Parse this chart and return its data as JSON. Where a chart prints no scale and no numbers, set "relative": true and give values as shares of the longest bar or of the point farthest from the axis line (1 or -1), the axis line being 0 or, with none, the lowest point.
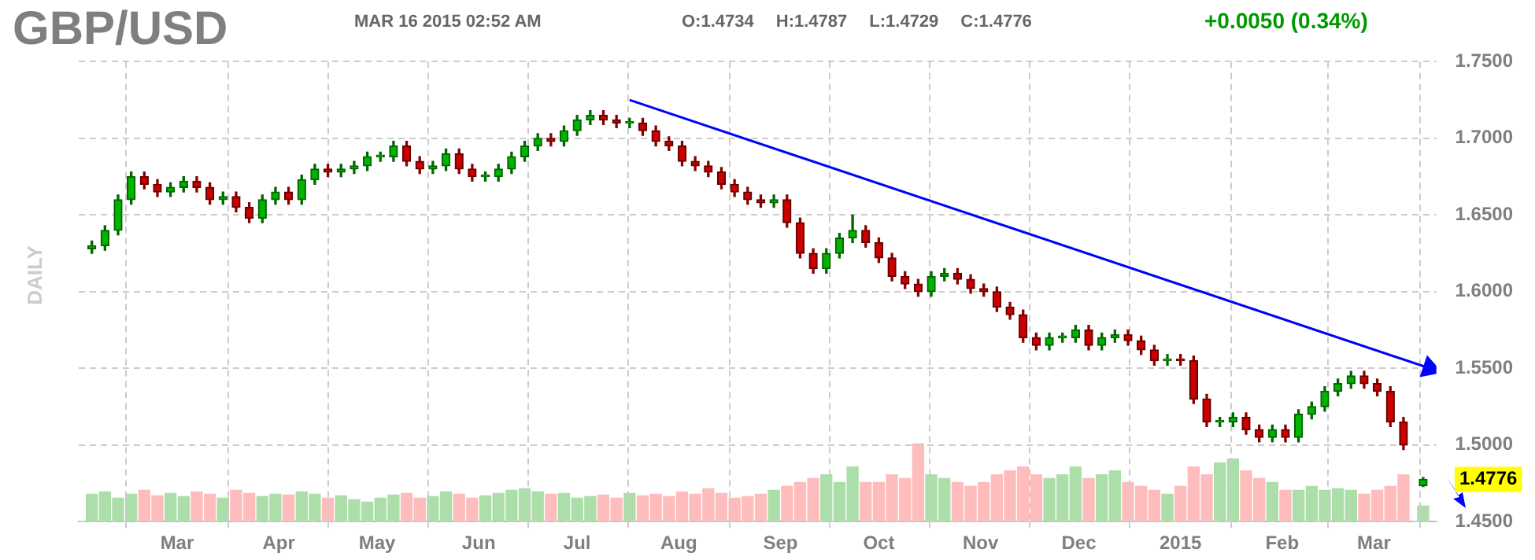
{
  "chart_data": [
    {
      "type": "candlestick",
      "title": "GBP/USD",
      "subtitle": "MAR 16 2015 02:52 AM",
      "ylabel": "DAILY",
      "annotations": [
        "O:1.4734",
        "H:1.4787",
        "L:1.4729",
        "C:1.4776",
        "+0.0050 (0.34%)",
        {
          "text": "1.4776",
          "x": "2015-03-16",
          "y": 1.4776
        }
      ],
      "x": [
        "2014-02-03",
        "2014-02-07",
        "2014-02-11",
        "2014-02-15",
        "2014-02-19",
        "2014-02-23",
        "2014-02-27",
        "2014-03-03",
        "2014-03-07",
        "2014-03-11",
        "2014-03-15",
        "2014-03-19",
        "2014-03-23",
        "2014-03-27",
        "2014-03-31",
        "2014-04-04",
        "2014-04-08",
        "2014-04-12",
        "2014-04-16",
        "2014-04-20",
        "2014-04-24",
        "2014-04-28",
        "2014-05-02",
        "2014-05-06",
        "2014-05-10",
        "2014-05-14",
        "2014-05-18",
        "2014-05-22",
        "2014-05-26",
        "2014-05-30",
        "2014-06-03",
        "2014-06-07",
        "2014-06-11",
        "2014-06-15",
        "2014-06-19",
        "2014-06-23",
        "2014-06-27",
        "2014-07-01",
        "2014-07-05",
        "2014-07-09",
        "2014-07-13",
        "2014-07-17",
        "2014-07-21",
        "2014-07-25",
        "2014-07-29",
        "2014-08-02",
        "2014-08-06",
        "2014-08-10",
        "2014-08-14",
        "2014-08-18",
        "2014-08-22",
        "2014-08-26",
        "2014-08-30",
        "2014-09-03",
        "2014-09-07",
        "2014-09-11",
        "2014-09-15",
        "2014-09-19",
        "2014-09-23",
        "2014-09-27",
        "2014-10-01",
        "2014-10-05",
        "2014-10-09",
        "2014-10-13",
        "2014-10-17",
        "2014-10-21",
        "2014-10-25",
        "2014-10-29",
        "2014-11-02",
        "2014-11-06",
        "2014-11-10",
        "2014-11-14",
        "2014-11-18",
        "2014-11-22",
        "2014-11-26",
        "2014-11-30",
        "2014-12-04",
        "2014-12-08",
        "2014-12-12",
        "2014-12-16",
        "2014-12-20",
        "2014-12-24",
        "2014-12-28",
        "2015-01-01",
        "2015-01-05",
        "2015-01-09",
        "2015-01-13",
        "2015-01-17",
        "2015-01-21",
        "2015-01-25",
        "2015-01-29",
        "2015-02-02",
        "2015-02-06",
        "2015-02-10",
        "2015-02-14",
        "2015-02-18",
        "2015-02-22",
        "2015-02-26",
        "2015-03-02",
        "2015-03-06",
        "2015-03-10",
        "2015-03-16"
      ],
      "ohlc": [
        [
          1.628,
          1.633,
          1.625,
          1.63
        ],
        [
          1.63,
          1.643,
          1.627,
          1.64
        ],
        [
          1.64,
          1.663,
          1.637,
          1.66
        ],
        [
          1.66,
          1.678,
          1.657,
          1.675
        ],
        [
          1.675,
          1.678,
          1.667,
          1.67
        ],
        [
          1.67,
          1.673,
          1.662,
          1.665
        ],
        [
          1.665,
          1.671,
          1.662,
          1.668
        ],
        [
          1.668,
          1.675,
          1.665,
          1.672
        ],
        [
          1.672,
          1.675,
          1.665,
          1.668
        ],
        [
          1.668,
          1.671,
          1.657,
          1.66
        ],
        [
          1.66,
          1.665,
          1.657,
          1.662
        ],
        [
          1.662,
          1.665,
          1.652,
          1.655
        ],
        [
          1.655,
          1.658,
          1.645,
          1.648
        ],
        [
          1.648,
          1.663,
          1.645,
          1.66
        ],
        [
          1.66,
          1.668,
          1.657,
          1.665
        ],
        [
          1.665,
          1.668,
          1.657,
          1.66
        ],
        [
          1.66,
          1.676,
          1.657,
          1.673
        ],
        [
          1.673,
          1.683,
          1.67,
          1.68
        ],
        [
          1.68,
          1.683,
          1.675,
          1.678
        ],
        [
          1.678,
          1.683,
          1.675,
          1.68
        ],
        [
          1.68,
          1.685,
          1.677,
          1.682
        ],
        [
          1.682,
          1.691,
          1.679,
          1.688
        ],
        [
          1.688,
          1.691,
          1.685,
          1.688
        ],
        [
          1.688,
          1.698,
          1.685,
          1.695
        ],
        [
          1.695,
          1.698,
          1.682,
          1.685
        ],
        [
          1.685,
          1.688,
          1.677,
          1.68
        ],
        [
          1.68,
          1.685,
          1.677,
          1.682
        ],
        [
          1.682,
          1.693,
          1.679,
          1.69
        ],
        [
          1.69,
          1.693,
          1.677,
          1.68
        ],
        [
          1.68,
          1.683,
          1.672,
          1.675
        ],
        [
          1.675,
          1.678,
          1.672,
          1.675
        ],
        [
          1.675,
          1.683,
          1.672,
          1.68
        ],
        [
          1.68,
          1.691,
          1.677,
          1.688
        ],
        [
          1.688,
          1.698,
          1.685,
          1.695
        ],
        [
          1.695,
          1.703,
          1.692,
          1.7
        ],
        [
          1.7,
          1.703,
          1.695,
          1.698
        ],
        [
          1.698,
          1.708,
          1.695,
          1.705
        ],
        [
          1.705,
          1.715,
          1.702,
          1.712
        ],
        [
          1.712,
          1.718,
          1.709,
          1.715
        ],
        [
          1.715,
          1.718,
          1.709,
          1.712
        ],
        [
          1.712,
          1.715,
          1.707,
          1.71
        ],
        [
          1.71,
          1.713,
          1.707,
          1.71
        ],
        [
          1.71,
          1.713,
          1.702,
          1.705
        ],
        [
          1.705,
          1.708,
          1.695,
          1.698
        ],
        [
          1.698,
          1.701,
          1.692,
          1.695
        ],
        [
          1.695,
          1.698,
          1.682,
          1.685
        ],
        [
          1.685,
          1.688,
          1.679,
          1.682
        ],
        [
          1.682,
          1.685,
          1.675,
          1.678
        ],
        [
          1.678,
          1.681,
          1.667,
          1.67
        ],
        [
          1.67,
          1.673,
          1.662,
          1.665
        ],
        [
          1.665,
          1.668,
          1.657,
          1.66
        ],
        [
          1.66,
          1.663,
          1.655,
          1.658
        ],
        [
          1.658,
          1.663,
          1.655,
          1.66
        ],
        [
          1.66,
          1.663,
          1.642,
          1.645
        ],
        [
          1.645,
          1.648,
          1.622,
          1.625
        ],
        [
          1.625,
          1.628,
          1.612,
          1.615
        ],
        [
          1.615,
          1.628,
          1.612,
          1.625
        ],
        [
          1.625,
          1.638,
          1.622,
          1.635
        ],
        [
          1.635,
          1.65,
          1.632,
          1.64
        ],
        [
          1.64,
          1.643,
          1.629,
          1.632
        ],
        [
          1.632,
          1.635,
          1.619,
          1.622
        ],
        [
          1.622,
          1.625,
          1.607,
          1.61
        ],
        [
          1.61,
          1.613,
          1.602,
          1.605
        ],
        [
          1.605,
          1.608,
          1.597,
          1.6
        ],
        [
          1.6,
          1.613,
          1.597,
          1.61
        ],
        [
          1.61,
          1.615,
          1.607,
          1.612
        ],
        [
          1.612,
          1.615,
          1.605,
          1.608
        ],
        [
          1.608,
          1.611,
          1.599,
          1.602
        ],
        [
          1.602,
          1.605,
          1.597,
          1.6
        ],
        [
          1.6,
          1.603,
          1.587,
          1.59
        ],
        [
          1.59,
          1.593,
          1.582,
          1.585
        ],
        [
          1.585,
          1.588,
          1.567,
          1.57
        ],
        [
          1.57,
          1.573,
          1.562,
          1.565
        ],
        [
          1.565,
          1.573,
          1.562,
          1.57
        ],
        [
          1.57,
          1.573,
          1.567,
          1.57
        ],
        [
          1.57,
          1.578,
          1.567,
          1.575
        ],
        [
          1.575,
          1.578,
          1.562,
          1.565
        ],
        [
          1.565,
          1.573,
          1.562,
          1.57
        ],
        [
          1.57,
          1.575,
          1.567,
          1.572
        ],
        [
          1.572,
          1.575,
          1.565,
          1.568
        ],
        [
          1.568,
          1.571,
          1.559,
          1.562
        ],
        [
          1.562,
          1.565,
          1.552,
          1.555
        ],
        [
          1.555,
          1.559,
          1.552,
          1.556
        ],
        [
          1.556,
          1.559,
          1.552,
          1.555
        ],
        [
          1.555,
          1.558,
          1.527,
          1.53
        ],
        [
          1.53,
          1.533,
          1.512,
          1.515
        ],
        [
          1.515,
          1.518,
          1.512,
          1.515
        ],
        [
          1.515,
          1.521,
          1.512,
          1.518
        ],
        [
          1.518,
          1.521,
          1.507,
          1.51
        ],
        [
          1.51,
          1.513,
          1.502,
          1.505
        ],
        [
          1.505,
          1.513,
          1.502,
          1.51
        ],
        [
          1.51,
          1.513,
          1.502,
          1.505
        ],
        [
          1.505,
          1.523,
          1.502,
          1.52
        ],
        [
          1.52,
          1.528,
          1.517,
          1.525
        ],
        [
          1.525,
          1.538,
          1.522,
          1.535
        ],
        [
          1.535,
          1.543,
          1.532,
          1.54
        ],
        [
          1.54,
          1.548,
          1.537,
          1.545
        ],
        [
          1.545,
          1.548,
          1.537,
          1.54
        ],
        [
          1.54,
          1.543,
          1.532,
          1.535
        ],
        [
          1.535,
          1.538,
          1.512,
          1.515
        ],
        [
          1.515,
          1.518,
          1.497,
          1.5
        ],
        [
          1.4734,
          1.4787,
          1.4729,
          1.4776
        ]
      ],
      "series": [
        {
          "type": "line",
          "color": "#0000ff",
          "x": [
            "2014-07-17",
            "2015-03-18"
          ],
          "values": [
            1.725,
            1.55
          ]
        }
      ],
      "xlim": [
        "2014-01-30",
        "2015-03-20"
      ],
      "xticks": [
        {
          "value": "2014-03-01",
          "label": "Mar"
        },
        {
          "value": "2014-04-01",
          "label": "Apr"
        },
        {
          "value": "2014-05-01",
          "label": "May"
        },
        {
          "value": "2014-06-01",
          "label": "Jun"
        },
        {
          "value": "2014-07-01",
          "label": "Jul"
        },
        {
          "value": "2014-08-01",
          "label": "Aug"
        },
        {
          "value": "2014-09-01",
          "label": "Sep"
        },
        {
          "value": "2014-10-01",
          "label": "Oct"
        },
        {
          "value": "2014-11-01",
          "label": "Nov"
        },
        {
          "value": "2014-12-01",
          "label": "Dec"
        },
        {
          "value": "2015-01-01",
          "label": "2015"
        },
        {
          "value": "2015-02-01",
          "label": "Feb"
        },
        {
          "value": "2015-03-01",
          "label": "Mar"
        }
      ],
      "ylim": [
        1.45,
        1.75
      ],
      "yticks": [
        {
          "value": 1.45,
          "label": "1.4500"
        },
        {
          "value": 1.5,
          "label": "1.5000"
        },
        {
          "value": 1.55,
          "label": "1.5500"
        },
        {
          "value": 1.6,
          "label": "1.6000"
        },
        {
          "value": 1.65,
          "label": "1.6500"
        },
        {
          "value": 1.7,
          "label": "1.7000"
        },
        {
          "value": 1.75,
          "label": "1.7500"
        }
      ],
      "grid": true
    },
    {
      "type": "bar",
      "relative": true,
      "xlim": [
        "2014-01-30",
        "2015-03-20"
      ],
      "x": [
        "2014-02-03",
        "2014-02-07",
        "2014-02-11",
        "2014-02-15",
        "2014-02-19",
        "2014-02-23",
        "2014-02-27",
        "2014-03-03",
        "2014-03-07",
        "2014-03-11",
        "2014-03-15",
        "2014-03-19",
        "2014-03-23",
        "2014-03-27",
        "2014-03-31",
        "2014-04-04",
        "2014-04-08",
        "2014-04-12",
        "2014-04-16",
        "2014-04-20",
        "2014-04-24",
        "2014-04-28",
        "2014-05-02",
        "2014-05-06",
        "2014-05-10",
        "2014-05-14",
        "2014-05-18",
        "2014-05-22",
        "2014-05-26",
        "2014-05-30",
        "2014-06-03",
        "2014-06-07",
        "2014-06-11",
        "2014-06-15",
        "2014-06-19",
        "2014-06-23",
        "2014-06-27",
        "2014-07-01",
        "2014-07-05",
        "2014-07-09",
        "2014-07-13",
        "2014-07-17",
        "2014-07-21",
        "2014-07-25",
        "2014-07-29",
        "2014-08-02",
        "2014-08-06",
        "2014-08-10",
        "2014-08-14",
        "2014-08-18",
        "2014-08-22",
        "2014-08-26",
        "2014-08-30",
        "2014-09-03",
        "2014-09-07",
        "2014-09-11",
        "2014-09-15",
        "2014-09-19",
        "2014-09-23",
        "2014-09-27",
        "2014-10-01",
        "2014-10-05",
        "2014-10-09",
        "2014-10-13",
        "2014-10-17",
        "2014-10-21",
        "2014-10-25",
        "2014-10-29",
        "2014-11-02",
        "2014-11-06",
        "2014-11-10",
        "2014-11-14",
        "2014-11-18",
        "2014-11-22",
        "2014-11-26",
        "2014-11-30",
        "2014-12-04",
        "2014-12-08",
        "2014-12-12",
        "2014-12-16",
        "2014-12-20",
        "2014-12-24",
        "2014-12-28",
        "2015-01-01",
        "2015-01-05",
        "2015-01-09",
        "2015-01-13",
        "2015-01-17",
        "2015-01-21",
        "2015-01-25",
        "2015-01-29",
        "2015-02-02",
        "2015-02-06",
        "2015-02-10",
        "2015-02-14",
        "2015-02-18",
        "2015-02-22",
        "2015-02-26",
        "2015-03-02",
        "2015-03-06",
        "2015-03-10",
        "2015-03-16"
      ],
      "colors": [
        "#abdea8",
        "#abdea8",
        "#abdea8",
        "#abdea8",
        "#ffbcbc",
        "#ffbcbc",
        "#abdea8",
        "#abdea8",
        "#ffbcbc",
        "#ffbcbc",
        "#abdea8",
        "#ffbcbc",
        "#ffbcbc",
        "#abdea8",
        "#abdea8",
        "#ffbcbc",
        "#abdea8",
        "#abdea8",
        "#ffbcbc",
        "#abdea8",
        "#abdea8",
        "#abdea8",
        "#abdea8",
        "#abdea8",
        "#ffbcbc",
        "#ffbcbc",
        "#abdea8",
        "#abdea8",
        "#ffbcbc",
        "#ffbcbc",
        "#abdea8",
        "#abdea8",
        "#abdea8",
        "#abdea8",
        "#abdea8",
        "#ffbcbc",
        "#abdea8",
        "#abdea8",
        "#abdea8",
        "#ffbcbc",
        "#ffbcbc",
        "#abdea8",
        "#ffbcbc",
        "#ffbcbc",
        "#ffbcbc",
        "#ffbcbc",
        "#ffbcbc",
        "#ffbcbc",
        "#ffbcbc",
        "#ffbcbc",
        "#ffbcbc",
        "#ffbcbc",
        "#abdea8",
        "#ffbcbc",
        "#ffbcbc",
        "#ffbcbc",
        "#abdea8",
        "#abdea8",
        "#abdea8",
        "#ffbcbc",
        "#ffbcbc",
        "#ffbcbc",
        "#ffbcbc",
        "#ffbcbc",
        "#abdea8",
        "#abdea8",
        "#ffbcbc",
        "#ffbcbc",
        "#ffbcbc",
        "#ffbcbc",
        "#ffbcbc",
        "#ffbcbc",
        "#ffbcbc",
        "#abdea8",
        "#abdea8",
        "#abdea8",
        "#ffbcbc",
        "#abdea8",
        "#abdea8",
        "#ffbcbc",
        "#ffbcbc",
        "#ffbcbc",
        "#abdea8",
        "#ffbcbc",
        "#ffbcbc",
        "#ffbcbc",
        "#abdea8",
        "#abdea8",
        "#ffbcbc",
        "#ffbcbc",
        "#abdea8",
        "#ffbcbc",
        "#abdea8",
        "#abdea8",
        "#abdea8",
        "#abdea8",
        "#abdea8",
        "#ffbcbc",
        "#ffbcbc",
        "#ffbcbc",
        "#ffbcbc",
        "#abdea8"
      ],
      "values": [
        0.35,
        0.38,
        0.3,
        0.35,
        0.4,
        0.33,
        0.36,
        0.32,
        0.38,
        0.35,
        0.3,
        0.4,
        0.36,
        0.32,
        0.35,
        0.34,
        0.38,
        0.35,
        0.3,
        0.33,
        0.28,
        0.25,
        0.3,
        0.34,
        0.36,
        0.3,
        0.32,
        0.38,
        0.35,
        0.3,
        0.33,
        0.36,
        0.4,
        0.42,
        0.38,
        0.35,
        0.36,
        0.3,
        0.32,
        0.34,
        0.3,
        0.36,
        0.33,
        0.35,
        0.32,
        0.38,
        0.35,
        0.42,
        0.36,
        0.3,
        0.32,
        0.35,
        0.4,
        0.45,
        0.5,
        0.55,
        0.6,
        0.5,
        0.7,
        0.5,
        0.5,
        0.6,
        0.55,
        1.0,
        0.6,
        0.55,
        0.5,
        0.45,
        0.5,
        0.6,
        0.65,
        0.7,
        0.6,
        0.55,
        0.6,
        0.7,
        0.55,
        0.6,
        0.65,
        0.5,
        0.45,
        0.4,
        0.35,
        0.45,
        0.7,
        0.6,
        0.75,
        0.8,
        0.65,
        0.55,
        0.5,
        0.4,
        0.4,
        0.45,
        0.4,
        0.42,
        0.4,
        0.35,
        0.4,
        0.45,
        0.6,
        0.2
      ]
    }
  ]
}
